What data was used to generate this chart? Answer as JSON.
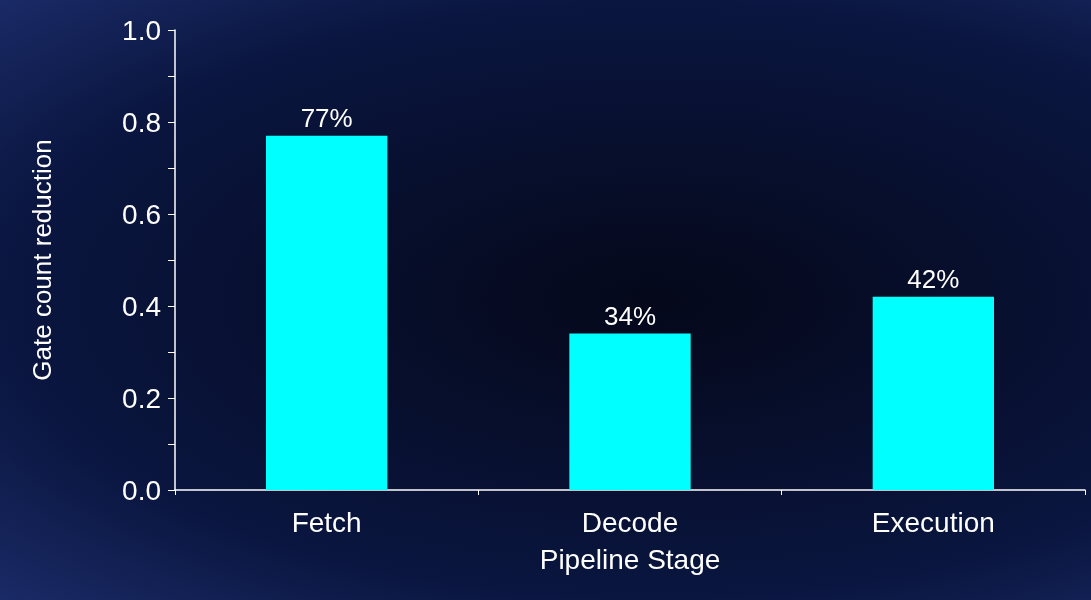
{
  "chart_data": {
    "type": "bar",
    "xlabel": "Pipeline Stage",
    "ylabel": "Gate count reduction",
    "categories": [
      "Fetch",
      "Decode",
      "Execution"
    ],
    "values": [
      0.77,
      0.34,
      0.42
    ],
    "color": "#00ffff",
    "value_labels": [
      "77%",
      "34%",
      "42%"
    ],
    "ylim": [
      0,
      1
    ],
    "yticks": [
      {
        "value": 0,
        "label": "0.0"
      },
      {
        "value": 0.1,
        "label": null
      },
      {
        "value": 0.2,
        "label": "0.2"
      },
      {
        "value": 0.3,
        "label": null
      },
      {
        "value": 0.4,
        "label": "0.4"
      },
      {
        "value": 0.5,
        "label": null
      },
      {
        "value": 0.6,
        "label": "0.6"
      },
      {
        "value": 0.7,
        "label": null
      },
      {
        "value": 0.8,
        "label": "0.8"
      },
      {
        "value": 0.9,
        "label": null
      },
      {
        "value": 1,
        "label": "1.0"
      }
    ],
    "grid": false
  }
}
